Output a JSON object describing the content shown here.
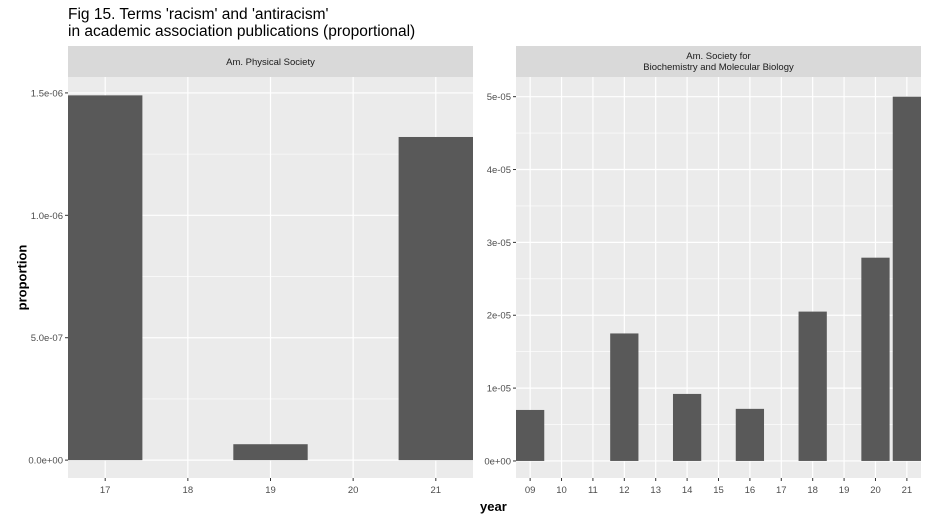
{
  "chart_data": {
    "type": "bar",
    "title": "Fig 15. Terms 'racism' and 'antiracism'",
    "subtitle": "in academic association publications (proportional)",
    "xlabel": "year",
    "ylabel": "proportion",
    "grid": true,
    "bar_color": "#595959",
    "panel_bg": "#EBEBEB",
    "strip_bg": "#D9D9D9",
    "panels": [
      {
        "strip": [
          "Am. Physical Society"
        ],
        "categories": [
          "17",
          "18",
          "19",
          "20",
          "21"
        ],
        "values": [
          1.49e-06,
          0,
          6.5e-08,
          0,
          1.32e-06
        ],
        "ylim": [
          -7.3e-08,
          1.565e-06
        ],
        "yticks": [
          0,
          5e-07,
          1e-06,
          1.5e-06
        ],
        "yticklabels": [
          "0.0e+00",
          "5.0e-07",
          "1.0e-06",
          "1.5e-06"
        ]
      },
      {
        "strip": [
          "Am. Society for",
          "Biochemistry and Molecular Biology"
        ],
        "categories": [
          "09",
          "10",
          "11",
          "12",
          "13",
          "14",
          "15",
          "16",
          "17",
          "18",
          "19",
          "20",
          "21"
        ],
        "values": [
          7e-06,
          0,
          0,
          1.75e-05,
          0,
          9.2e-06,
          0,
          7.15e-06,
          0,
          2.05e-05,
          0,
          2.79e-05,
          5e-05
        ],
        "ylim": [
          -2.34e-06,
          5.27e-05
        ],
        "yticks": [
          0,
          1e-05,
          2e-05,
          3e-05,
          4e-05,
          5e-05
        ],
        "yticklabels": [
          "0e+00",
          "1e-05",
          "2e-05",
          "3e-05",
          "4e-05",
          "5e-05"
        ]
      }
    ]
  }
}
